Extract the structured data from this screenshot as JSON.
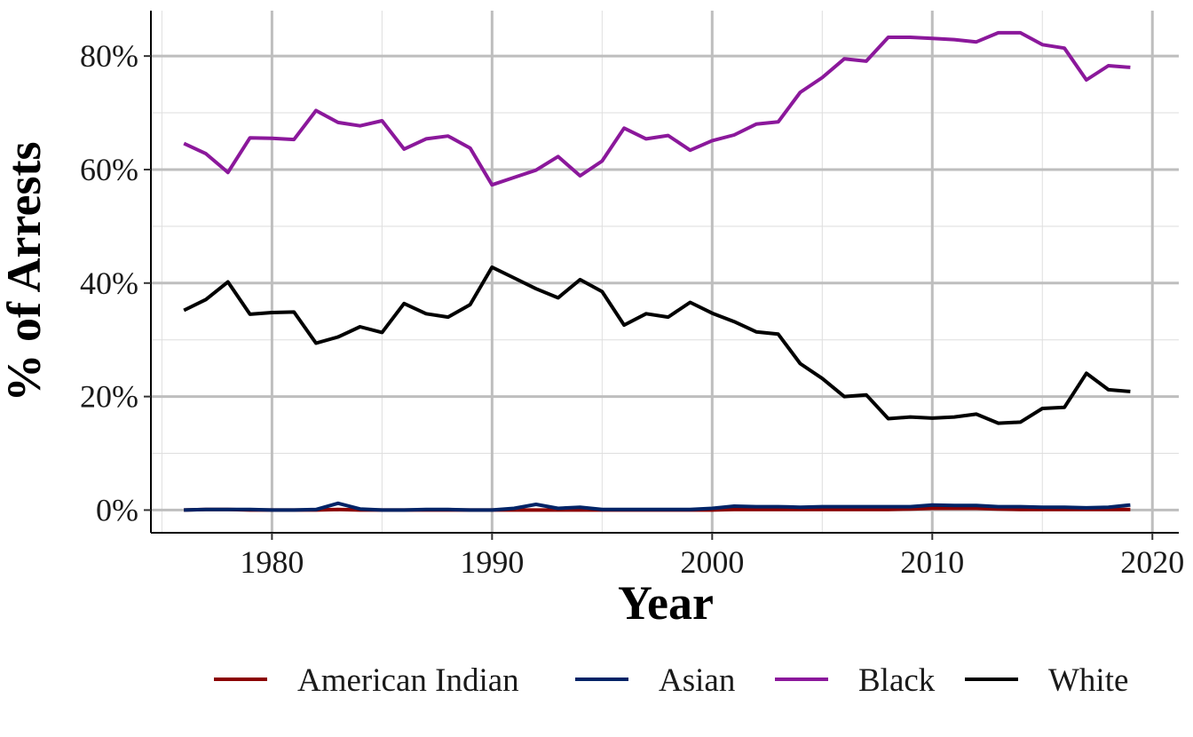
{
  "chart_data": {
    "type": "line",
    "title": "",
    "xlabel": "Year",
    "ylabel": "% of Arrests",
    "xlim": [
      1974.5,
      2021.2
    ],
    "ylim": [
      -4,
      88
    ],
    "x_ticks": [
      1980,
      1990,
      2000,
      2010,
      2020
    ],
    "x_tick_labels": [
      "1980",
      "1990",
      "2000",
      "2010",
      "2020"
    ],
    "y_ticks": [
      0,
      20,
      40,
      60,
      80
    ],
    "y_tick_labels": [
      "0%",
      "20%",
      "40%",
      "60%",
      "80%"
    ],
    "grid": true,
    "legend_position": "bottom",
    "x": [
      1976,
      1977,
      1978,
      1979,
      1980,
      1981,
      1982,
      1983,
      1984,
      1985,
      1986,
      1987,
      1988,
      1989,
      1990,
      1991,
      1992,
      1993,
      1994,
      1995,
      1996,
      1997,
      1998,
      1999,
      2000,
      2001,
      2002,
      2003,
      2004,
      2005,
      2006,
      2007,
      2008,
      2009,
      2010,
      2011,
      2012,
      2013,
      2014,
      2015,
      2016,
      2017,
      2018,
      2019
    ],
    "series": [
      {
        "name": "American Indian",
        "color": "#8b0000",
        "values": [
          0.0,
          0.1,
          0.1,
          0.0,
          0.0,
          0.0,
          0.0,
          0.1,
          0.0,
          0.0,
          0.0,
          0.0,
          0.0,
          0.0,
          0.0,
          0.0,
          0.0,
          0.0,
          0.0,
          0.0,
          0.0,
          0.0,
          0.0,
          0.0,
          0.0,
          0.1,
          0.1,
          0.1,
          0.1,
          0.1,
          0.1,
          0.1,
          0.1,
          0.2,
          0.3,
          0.3,
          0.3,
          0.2,
          0.1,
          0.1,
          0.1,
          0.1,
          0.1,
          0.1
        ]
      },
      {
        "name": "Asian",
        "color": "#002366",
        "values": [
          0.0,
          0.1,
          0.1,
          0.1,
          0.0,
          0.0,
          0.1,
          1.2,
          0.2,
          0.0,
          0.0,
          0.1,
          0.1,
          0.0,
          0.0,
          0.3,
          1.0,
          0.3,
          0.5,
          0.1,
          0.1,
          0.1,
          0.1,
          0.1,
          0.3,
          0.7,
          0.6,
          0.6,
          0.5,
          0.6,
          0.6,
          0.6,
          0.6,
          0.6,
          0.9,
          0.8,
          0.8,
          0.6,
          0.6,
          0.5,
          0.5,
          0.4,
          0.5,
          0.9
        ]
      },
      {
        "name": "Black",
        "color": "#8b189b",
        "values": [
          64.6,
          62.8,
          59.5,
          65.6,
          65.5,
          65.3,
          70.4,
          68.3,
          67.7,
          68.6,
          63.6,
          65.4,
          65.9,
          63.8,
          57.3,
          58.6,
          59.9,
          62.3,
          58.9,
          61.5,
          67.3,
          65.4,
          66.0,
          63.4,
          65.1,
          66.1,
          68.0,
          68.4,
          73.6,
          76.2,
          79.5,
          79.1,
          83.3,
          83.3,
          83.1,
          82.9,
          82.5,
          84.1,
          84.1,
          82.0,
          81.4,
          75.8,
          78.3,
          78.0
        ]
      },
      {
        "name": "White",
        "color": "#000000",
        "values": [
          35.2,
          37.1,
          40.2,
          34.5,
          34.8,
          34.9,
          29.4,
          30.5,
          32.3,
          31.3,
          36.4,
          34.6,
          34.0,
          36.2,
          42.8,
          40.9,
          39.0,
          37.4,
          40.6,
          38.5,
          32.6,
          34.6,
          34.0,
          36.6,
          34.7,
          33.2,
          31.4,
          31.0,
          25.8,
          23.2,
          20.0,
          20.3,
          16.1,
          16.4,
          16.2,
          16.4,
          16.9,
          15.3,
          15.5,
          17.9,
          18.1,
          24.1,
          21.2,
          20.9
        ]
      }
    ]
  }
}
